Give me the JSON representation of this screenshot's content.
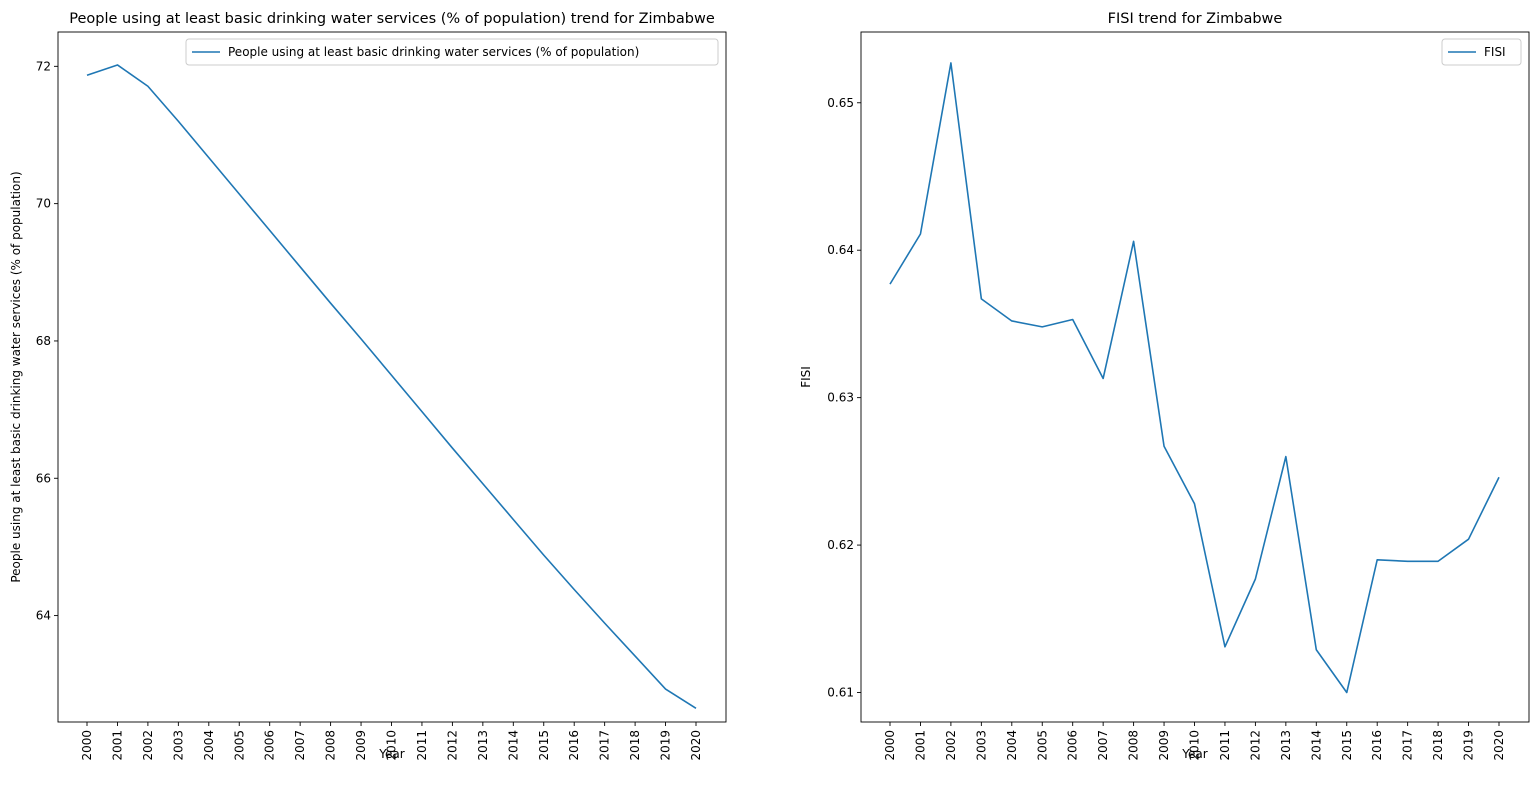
{
  "chart_data": [
    {
      "type": "line",
      "title": "People using at least basic drinking water services (% of population) trend for Zimbabwe",
      "xlabel": "Year",
      "ylabel": "People using at least basic drinking water services (% of population)",
      "x": [
        "2000",
        "2001",
        "2002",
        "2003",
        "2004",
        "2005",
        "2006",
        "2007",
        "2008",
        "2009",
        "2010",
        "2011",
        "2012",
        "2013",
        "2014",
        "2015",
        "2016",
        "2017",
        "2018",
        "2019",
        "2020"
      ],
      "series": [
        {
          "name": "People using at least basic drinking water services (% of population)",
          "color": "#1f77b4",
          "values": [
            71.87,
            72.02,
            71.71,
            71.2,
            70.67,
            70.14,
            69.61,
            69.08,
            68.55,
            68.03,
            67.5,
            66.97,
            66.44,
            65.92,
            65.4,
            64.88,
            64.38,
            63.89,
            63.41,
            62.93,
            62.65
          ]
        }
      ],
      "ylim": [
        62.45,
        72.5
      ],
      "yticks": [
        "64",
        "66",
        "68",
        "70",
        "72"
      ],
      "grid": false,
      "legend": "upper-right"
    },
    {
      "type": "line",
      "title": "FISI trend for Zimbabwe",
      "xlabel": "Year",
      "ylabel": "FISI",
      "x": [
        "2000",
        "2001",
        "2002",
        "2003",
        "2004",
        "2005",
        "2006",
        "2007",
        "2008",
        "2009",
        "2010",
        "2011",
        "2012",
        "2013",
        "2014",
        "2015",
        "2016",
        "2017",
        "2018",
        "2019",
        "2020"
      ],
      "series": [
        {
          "name": "FISI",
          "color": "#1f77b4",
          "values": [
            0.6377,
            0.6411,
            0.6527,
            0.6367,
            0.6352,
            0.6348,
            0.6353,
            0.6313,
            0.6406,
            0.6267,
            0.6228,
            0.6131,
            0.6177,
            0.626,
            0.6129,
            0.61,
            0.619,
            0.6189,
            0.6189,
            0.6204,
            0.6246
          ]
        }
      ],
      "ylim": [
        0.608,
        0.6548
      ],
      "yticks": [
        "0.61",
        "0.62",
        "0.63",
        "0.64",
        "0.65"
      ],
      "grid": false,
      "legend": "upper-right"
    }
  ]
}
